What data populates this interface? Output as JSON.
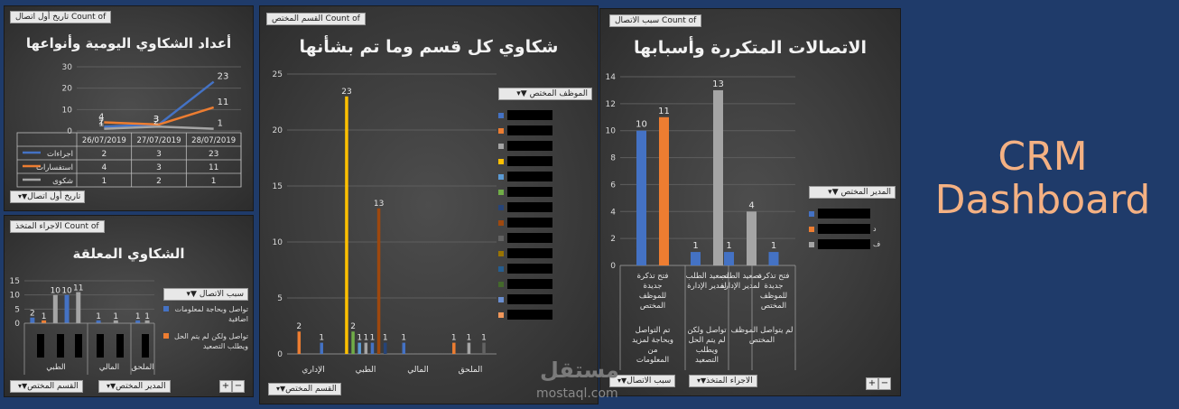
{
  "panels": {
    "daily": {
      "title": "أعداد الشكاوي اليومية وأنواعها",
      "count_tag": "Count of تاريخ أول اتصال",
      "filter_tag": "تاريخ أول اتصال",
      "table_dates": [
        "26/07/2019",
        "27/07/2019",
        "28/07/2019"
      ],
      "table_rows": [
        {
          "name": "اجراءات",
          "color": "#4472c4",
          "values": [
            "2",
            "3",
            "23"
          ]
        },
        {
          "name": "استفسارات",
          "color": "#ed7d31",
          "values": [
            "4",
            "3",
            "11"
          ]
        },
        {
          "name": "شكوى",
          "color": "#a5a5a5",
          "values": [
            "1",
            "2",
            "1"
          ]
        }
      ]
    },
    "pending": {
      "title": "الشكاوي المعلقة",
      "count_tag": "Count of الاجراء المتخذ",
      "legend_title": "سبب الاتصال",
      "legend_items": [
        {
          "label": "تواصل وبحاجة لمعلومات اضافية",
          "color": "#4472c4"
        },
        {
          "label": "تواصل ولكن لم يتم الحل ويطلب التصعيد",
          "color": "#ed7d31"
        }
      ],
      "filter_dept": "القسم المختص",
      "filter_manager": "المدير المختص",
      "plus": "+",
      "minus": "−"
    },
    "dept": {
      "title": "شكاوي كل قسم وما تم بشأنها",
      "count_tag": "Count of القسم المختص",
      "legend_title": "الموظف المختص",
      "filter_tag": "القسم المختص",
      "legend_colors": [
        "#4472c4",
        "#ed7d31",
        "#a5a5a5",
        "#ffc000",
        "#5b9bd5",
        "#70ad47",
        "#264478",
        "#9e480e",
        "#636363",
        "#997300",
        "#255e91",
        "#43682b",
        "#698ed0",
        "#f1975a"
      ]
    },
    "repeat": {
      "title": "الاتصالات المتكررة وأسبابها",
      "count_tag": "Count of سبب الاتصال",
      "legend_title": "المدير المختص",
      "filter_reason": "سبب الاتصال",
      "filter_action": "الاجراء المتخذ",
      "plus": "+",
      "minus": "−",
      "legend_partial": [
        "",
        "د",
        "ف"
      ],
      "legend_colors": [
        "#4472c4",
        "#ed7d31",
        "#a5a5a5"
      ]
    }
  },
  "crm": {
    "line1": "CRM",
    "line2": "Dashboard"
  },
  "watermark": {
    "arabic": "مستقل",
    "latin": "mostaql.com"
  },
  "chart_data": [
    {
      "type": "line",
      "title": "أعداد الشكاوي اليومية وأنواعها",
      "categories": [
        "26/07/2019",
        "27/07/2019",
        "28/07/2019"
      ],
      "series": [
        {
          "name": "اجراءات",
          "values": [
            2,
            3,
            23
          ]
        },
        {
          "name": "استفسارات",
          "values": [
            4,
            3,
            11
          ]
        },
        {
          "name": "شكوى",
          "values": [
            1,
            2,
            1
          ]
        }
      ],
      "ylim": [
        0,
        30
      ],
      "yticks": [
        0,
        10,
        20,
        30
      ],
      "legend": "table-below"
    },
    {
      "type": "bar",
      "title": "الشكاوي المعلقة",
      "groups": [
        "الطبي",
        "المالي",
        "الملحق"
      ],
      "bars": [
        {
          "group": 0,
          "color": "#4472c4",
          "value": 2
        },
        {
          "group": 0,
          "color": "#ed7d31",
          "value": 1
        },
        {
          "group": 0,
          "color": "#a5a5a5",
          "value": 10
        },
        {
          "group": 0,
          "color": "#4472c4",
          "value": 10
        },
        {
          "group": 0,
          "color": "#a5a5a5",
          "value": 11
        },
        {
          "group": 1,
          "color": "#4472c4",
          "value": 1
        },
        {
          "group": 1,
          "color": "#a5a5a5",
          "value": 1
        },
        {
          "group": 2,
          "color": "#4472c4",
          "value": 1
        },
        {
          "group": 2,
          "color": "#a5a5a5",
          "value": 1
        }
      ],
      "ylim": [
        0,
        15
      ],
      "yticks": [
        0,
        5,
        10,
        15
      ],
      "legend": "right"
    },
    {
      "type": "bar",
      "title": "شكاوي كل قسم وما تم بشأنها",
      "categories": [
        "الإداري",
        "الطبي",
        "المالي",
        "الملحق"
      ],
      "bars": [
        {
          "cat": 0,
          "color": "#ed7d31",
          "value": 2
        },
        {
          "cat": 0,
          "color": "#4472c4",
          "value": 1
        },
        {
          "cat": 1,
          "color": "#ffc000",
          "value": 23
        },
        {
          "cat": 1,
          "color": "#70ad47",
          "value": 2
        },
        {
          "cat": 1,
          "color": "#5b9bd5",
          "value": 1
        },
        {
          "cat": 1,
          "color": "#a5a5a5",
          "value": 1
        },
        {
          "cat": 1,
          "color": "#4472c4",
          "value": 1
        },
        {
          "cat": 1,
          "color": "#9e480e",
          "value": 13
        },
        {
          "cat": 1,
          "color": "#264478",
          "value": 1
        },
        {
          "cat": 2,
          "color": "#4472c4",
          "value": 1
        },
        {
          "cat": 3,
          "color": "#ed7d31",
          "value": 1
        },
        {
          "cat": 3,
          "color": "#a5a5a5",
          "value": 1
        },
        {
          "cat": 3,
          "color": "#636363",
          "value": 1
        }
      ],
      "ylim": [
        0,
        25
      ],
      "yticks": [
        0,
        5,
        10,
        15,
        20,
        25
      ],
      "legend": "right"
    },
    {
      "type": "bar",
      "title": "الاتصالات المتكررة وأسبابها",
      "categories_top": [
        "فتح تذكرة جديدة للموظف المختص",
        "تصعيد الطلب لمدير الإدارة",
        "تصعيد الطلب لمدير الإدارة",
        "فتح تذكرة جديدة للموظف المختص"
      ],
      "categories_bottom": [
        "تم التواصل وبحاجة لمزيد من المعلومات",
        "تواصل ولكن لم يتم الحل ويطلب التصعيد",
        "لم يتواصل الموظف المختص"
      ],
      "bars": [
        {
          "cat": 0,
          "color": "#4472c4",
          "value": 10
        },
        {
          "cat": 0,
          "color": "#ed7d31",
          "value": 11
        },
        {
          "cat": 1,
          "color": "#4472c4",
          "value": 1
        },
        {
          "cat": 1,
          "color": "#a5a5a5",
          "value": 13
        },
        {
          "cat": 2,
          "color": "#4472c4",
          "value": 1
        },
        {
          "cat": 2,
          "color": "#a5a5a5",
          "value": 4
        },
        {
          "cat": 3,
          "color": "#4472c4",
          "value": 1
        }
      ],
      "ylim": [
        0,
        14
      ],
      "yticks": [
        0,
        2,
        4,
        6,
        8,
        10,
        12,
        14
      ],
      "legend": "right"
    }
  ]
}
